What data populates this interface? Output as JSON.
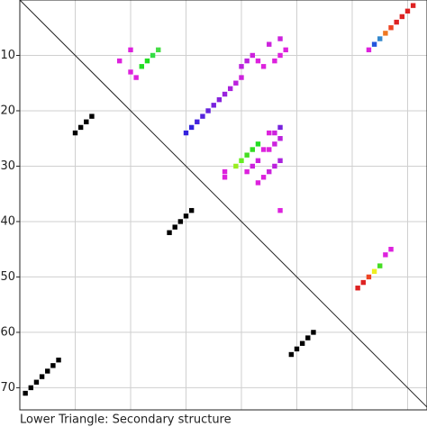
{
  "chart_data": {
    "type": "scatter",
    "caption": "Lower Triangle: Secondary structure",
    "xlim": [
      0,
      73.5
    ],
    "ylim": [
      0,
      74
    ],
    "xticks": [
      10,
      20,
      30,
      40,
      50,
      60,
      70
    ],
    "yticks": [
      10,
      20,
      30,
      40,
      50,
      60,
      70
    ],
    "grid": true,
    "diagonal": true,
    "x": [
      10,
      11,
      12,
      13,
      27,
      28,
      29,
      30,
      31,
      49,
      50,
      51,
      52,
      53,
      1,
      2,
      3,
      4,
      5,
      6,
      7,
      18,
      20,
      20,
      21,
      22,
      23,
      24,
      25,
      40,
      41,
      42,
      43,
      44,
      46,
      47,
      48,
      47,
      45,
      30,
      31,
      32,
      33,
      34,
      35,
      36,
      37,
      38,
      39,
      40,
      39,
      40,
      41,
      42,
      43,
      37,
      37,
      41,
      42,
      43,
      43,
      44,
      45,
      46,
      47,
      45,
      46,
      47,
      47,
      46,
      45,
      44,
      47,
      63,
      64,
      65,
      66,
      67,
      68,
      69,
      70,
      71,
      61,
      62,
      63,
      64,
      65,
      66,
      67
    ],
    "y": [
      24,
      23,
      22,
      21,
      42,
      41,
      40,
      39,
      38,
      64,
      63,
      62,
      61,
      60,
      71,
      70,
      69,
      68,
      67,
      66,
      65,
      11,
      9,
      13,
      14,
      12,
      11,
      10,
      9,
      12,
      11,
      10,
      11,
      12,
      11,
      10,
      9,
      7,
      8,
      24,
      23,
      22,
      21,
      20,
      19,
      18,
      17,
      16,
      15,
      14,
      30,
      29,
      28,
      27,
      26,
      31,
      32,
      31,
      30,
      29,
      33,
      32,
      31,
      30,
      29,
      24,
      24,
      23,
      25,
      26,
      27,
      27,
      38,
      9,
      8,
      7,
      6,
      5,
      4,
      3,
      2,
      1,
      52,
      51,
      50,
      49,
      48,
      46,
      45
    ],
    "colors": [
      "#000000",
      "#000000",
      "#000000",
      "#000000",
      "#000000",
      "#000000",
      "#000000",
      "#000000",
      "#000000",
      "#000000",
      "#000000",
      "#000000",
      "#000000",
      "#000000",
      "#000000",
      "#000000",
      "#000000",
      "#000000",
      "#000000",
      "#000000",
      "#000000",
      "#dd22dd",
      "#dd22dd",
      "#dd22dd",
      "#dd22dd",
      "#22dd22",
      "#22dd22",
      "#33dd44",
      "#44dd44",
      "#bb22dd",
      "#bb22dd",
      "#cc22dd",
      "#dd22dd",
      "#dd22dd",
      "#dd22dd",
      "#dd22dd",
      "#dd22dd",
      "#cc22dd",
      "#cc22dd",
      "#3322dd",
      "#3322dd",
      "#4422dd",
      "#5522dd",
      "#6622dd",
      "#7722dd",
      "#8822dd",
      "#9922dd",
      "#aa22dd",
      "#bb22dd",
      "#cc22dd",
      "#99ee22",
      "#66ee22",
      "#44dd22",
      "#33dd22",
      "#22dd22",
      "#dd22dd",
      "#dd22dd",
      "#dd22dd",
      "#cc22dd",
      "#cc22dd",
      "#dd22dd",
      "#dd22dd",
      "#cc22dd",
      "#bb22dd",
      "#aa22dd",
      "#dd22dd",
      "#cc22dd",
      "#7722dd",
      "#bb22dd",
      "#cc22dd",
      "#dd22dd",
      "#dd22dd",
      "#dd22dd",
      "#dd22dd",
      "#2255dd",
      "#3388cc",
      "#ee7722",
      "#ee4422",
      "#dd2222",
      "#dd2222",
      "#dd2222",
      "#dd2222",
      "#dd2222",
      "#dd2222",
      "#ee4422",
      "#eeee22",
      "#44dd22",
      "#dd22dd",
      "#dd22dd"
    ]
  }
}
